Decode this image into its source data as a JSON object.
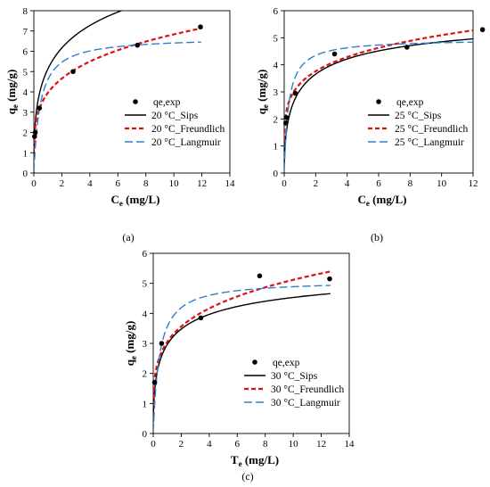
{
  "chart_data": [
    {
      "type": "scatter",
      "panel_label": "(a)",
      "xlim": [
        0,
        14
      ],
      "ylim": [
        0,
        8
      ],
      "xticks": [
        "0",
        "2",
        "4",
        "6",
        "8",
        "10",
        "12",
        "14"
      ],
      "yticks": [
        "0",
        "1",
        "2",
        "3",
        "4",
        "5",
        "6",
        "7",
        "8"
      ],
      "xlabel_main": "C",
      "xlabel_sub": "e",
      "xlabel_units": "(mg/L)",
      "ylabel_main": "q",
      "ylabel_sub": "e",
      "ylabel_units": "(mg/g)",
      "grid": false,
      "legend_position": "bottom-right",
      "points": {
        "name": "qe,exp",
        "x": [
          0.05,
          0.1,
          0.4,
          2.8,
          7.4,
          11.9
        ],
        "y": [
          1.8,
          2.0,
          3.2,
          5.0,
          6.3,
          7.2
        ]
      },
      "models": [
        {
          "name": "20 °C_Sips",
          "type": "sips",
          "qm": 16.0,
          "K": 0.16,
          "n": 0.41
        },
        {
          "name": "20 °C_Freundlich",
          "type": "freundlich",
          "K": 3.95,
          "n": 4.2
        },
        {
          "name": "20 °C_Langmuir",
          "type": "langmuir",
          "qm": 6.7,
          "K": 2.2
        }
      ]
    },
    {
      "type": "scatter",
      "panel_label": "(b)",
      "xlim": [
        0,
        12
      ],
      "ylim": [
        0,
        6
      ],
      "xticks": [
        "0",
        "2",
        "4",
        "6",
        "8",
        "10",
        "12"
      ],
      "yticks": [
        "0",
        "1",
        "2",
        "3",
        "4",
        "5",
        "6"
      ],
      "xlabel_main": "C",
      "xlabel_sub": "e",
      "xlabel_units": "(mg/L)",
      "ylabel_main": "q",
      "ylabel_sub": "e",
      "ylabel_units": "(mg/g)",
      "grid": false,
      "legend_position": "bottom-right",
      "points": {
        "name": "qe,exp",
        "x": [
          0.1,
          0.15,
          0.7,
          3.2,
          7.8,
          12.6
        ],
        "y": [
          1.85,
          2.05,
          2.95,
          4.4,
          4.65,
          5.3
        ]
      },
      "models": [
        {
          "name": "25 °C_Sips",
          "type": "sips",
          "qm": 6.3,
          "K": 0.9,
          "n": 0.55
        },
        {
          "name": "25 °C_Freundlich",
          "type": "freundlich",
          "K": 3.3,
          "n": 5.3
        },
        {
          "name": "25 °C_Langmuir",
          "type": "langmuir",
          "qm": 4.95,
          "K": 3.6
        }
      ]
    },
    {
      "type": "scatter",
      "panel_label": "(c)",
      "xlim": [
        0,
        14
      ],
      "ylim": [
        0,
        6
      ],
      "xticks": [
        "0",
        "2",
        "4",
        "6",
        "8",
        "10",
        "12",
        "14"
      ],
      "yticks": [
        "0",
        "1",
        "2",
        "3",
        "4",
        "5",
        "6"
      ],
      "xlabel_main": "T",
      "xlabel_sub": "e",
      "xlabel_units": "(mg/L)",
      "ylabel_main": "q",
      "ylabel_sub": "e",
      "ylabel_units": "(mg/g)",
      "grid": false,
      "legend_position": "bottom-right",
      "points": {
        "name": "qe,exp",
        "x": [
          0.1,
          0.6,
          3.4,
          7.6,
          12.6
        ],
        "y": [
          1.7,
          3.0,
          3.85,
          5.25,
          5.15
        ]
      },
      "models": [
        {
          "name": "30 °C_Sips",
          "type": "sips",
          "qm": 6.0,
          "K": 0.95,
          "n": 0.5
        },
        {
          "name": "30 °C_Freundlich",
          "type": "freundlich",
          "K": 3.05,
          "n": 4.45
        },
        {
          "name": "30 °C_Langmuir",
          "type": "langmuir",
          "qm": 5.1,
          "K": 2.3
        }
      ]
    }
  ]
}
